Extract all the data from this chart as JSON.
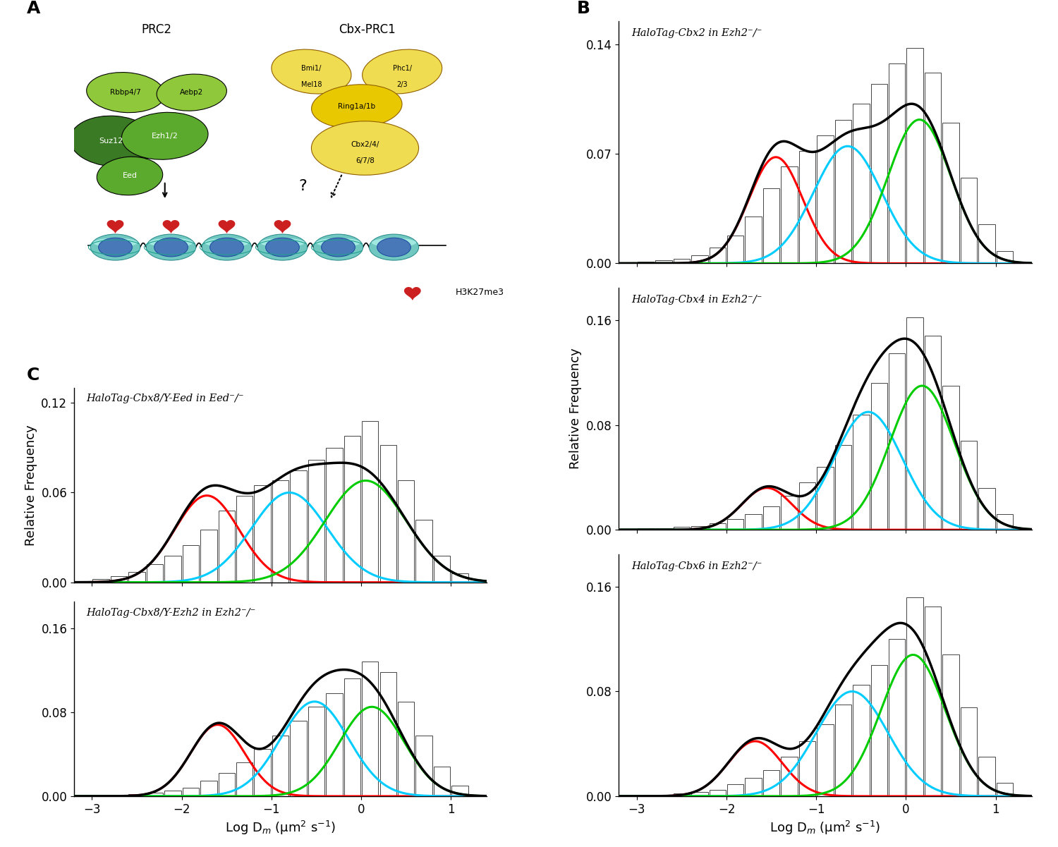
{
  "panel_B": {
    "plots": [
      {
        "title_parts": [
          [
            "HaloTag-Cbx2",
            "italic"
          ],
          [
            " in ",
            "italic"
          ],
          [
            "Ezh2",
            "italic"
          ],
          [
            "⁻/⁻",
            "italic"
          ]
        ],
        "title_plain": "HaloTag-Cbx2 in Ezh2⁻/⁻",
        "ylim": [
          0,
          0.155
        ],
        "yticks": [
          0.0,
          0.07,
          0.14
        ],
        "hist_heights": [
          0.001,
          0.002,
          0.003,
          0.005,
          0.01,
          0.018,
          0.03,
          0.048,
          0.062,
          0.072,
          0.082,
          0.092,
          0.102,
          0.115,
          0.128,
          0.138,
          0.122,
          0.09,
          0.055,
          0.025,
          0.008
        ],
        "red_gaussian": {
          "mu": -1.45,
          "sigma": 0.3,
          "amp": 0.068
        },
        "cyan_gaussian": {
          "mu": -0.65,
          "sigma": 0.38,
          "amp": 0.075
        },
        "green_gaussian": {
          "mu": 0.15,
          "sigma": 0.35,
          "amp": 0.092
        }
      },
      {
        "title_plain": "HaloTag-Cbx4 in Ezh2⁻/⁻",
        "ylim": [
          0,
          0.185
        ],
        "yticks": [
          0.0,
          0.08,
          0.16
        ],
        "hist_heights": [
          0.001,
          0.001,
          0.002,
          0.003,
          0.005,
          0.008,
          0.012,
          0.018,
          0.026,
          0.036,
          0.048,
          0.065,
          0.088,
          0.112,
          0.135,
          0.162,
          0.148,
          0.11,
          0.068,
          0.032,
          0.012
        ],
        "red_gaussian": {
          "mu": -1.55,
          "sigma": 0.28,
          "amp": 0.032
        },
        "cyan_gaussian": {
          "mu": -0.42,
          "sigma": 0.38,
          "amp": 0.09
        },
        "green_gaussian": {
          "mu": 0.18,
          "sigma": 0.36,
          "amp": 0.11
        }
      },
      {
        "title_plain": "HaloTag-Cbx6 in Ezh2⁻/⁻",
        "ylim": [
          0,
          0.185
        ],
        "yticks": [
          0.0,
          0.08,
          0.16
        ],
        "hist_heights": [
          0.001,
          0.001,
          0.002,
          0.003,
          0.005,
          0.009,
          0.014,
          0.02,
          0.03,
          0.042,
          0.055,
          0.07,
          0.085,
          0.1,
          0.12,
          0.152,
          0.145,
          0.108,
          0.068,
          0.03,
          0.01
        ],
        "red_gaussian": {
          "mu": -1.68,
          "sigma": 0.3,
          "amp": 0.042
        },
        "cyan_gaussian": {
          "mu": -0.6,
          "sigma": 0.4,
          "amp": 0.08
        },
        "green_gaussian": {
          "mu": 0.08,
          "sigma": 0.36,
          "amp": 0.108
        }
      }
    ],
    "xlabel": "Log D$_{m}$ (μm$^{2}$ s$^{-1}$)",
    "ylabel": "Relative Frequency",
    "xlim": [
      -3.2,
      1.4
    ],
    "xticks": [
      -3,
      -2,
      -1,
      0,
      1
    ]
  },
  "panel_C": {
    "plots": [
      {
        "title_plain": "HaloTag-Cbx8/Y-Eed in Eed⁻/⁻",
        "ylim": [
          0,
          0.13
        ],
        "yticks": [
          0.0,
          0.06,
          0.12
        ],
        "hist_heights": [
          0.002,
          0.004,
          0.007,
          0.012,
          0.018,
          0.025,
          0.035,
          0.048,
          0.058,
          0.065,
          0.068,
          0.075,
          0.082,
          0.09,
          0.098,
          0.108,
          0.092,
          0.068,
          0.042,
          0.018,
          0.006
        ],
        "red_gaussian": {
          "mu": -1.72,
          "sigma": 0.36,
          "amp": 0.058
        },
        "cyan_gaussian": {
          "mu": -0.8,
          "sigma": 0.42,
          "amp": 0.06
        },
        "green_gaussian": {
          "mu": 0.05,
          "sigma": 0.45,
          "amp": 0.068
        }
      },
      {
        "title_plain": "HaloTag-Cbx8/Y-Ezh2 in Ezh2⁻/⁻",
        "ylim": [
          0,
          0.185
        ],
        "yticks": [
          0.0,
          0.08,
          0.16
        ],
        "hist_heights": [
          0.001,
          0.001,
          0.002,
          0.003,
          0.005,
          0.008,
          0.015,
          0.022,
          0.032,
          0.045,
          0.058,
          0.072,
          0.085,
          0.098,
          0.112,
          0.128,
          0.118,
          0.09,
          0.058,
          0.028,
          0.01
        ],
        "red_gaussian": {
          "mu": -1.6,
          "sigma": 0.3,
          "amp": 0.068
        },
        "cyan_gaussian": {
          "mu": -0.52,
          "sigma": 0.38,
          "amp": 0.09
        },
        "green_gaussian": {
          "mu": 0.12,
          "sigma": 0.36,
          "amp": 0.085
        }
      }
    ],
    "xlabel": "Log D$_{m}$ (μm$^{2}$ s$^{-1}$)",
    "ylabel": "Relative Frequency",
    "xlim": [
      -3.2,
      1.4
    ],
    "xticks": [
      -3,
      -2,
      -1,
      0,
      1
    ]
  },
  "hist_bin_edges": [
    -3.0,
    -2.8,
    -2.6,
    -2.4,
    -2.2,
    -2.0,
    -1.8,
    -1.6,
    -1.4,
    -1.2,
    -1.0,
    -0.8,
    -0.6,
    -0.4,
    -0.2,
    0.0,
    0.2,
    0.4,
    0.6,
    0.8,
    1.0,
    1.2
  ],
  "colors": {
    "red": "#FF0000",
    "cyan": "#00CCFF",
    "green": "#00CC00",
    "black": "#000000",
    "hist_face": "#FFFFFF",
    "hist_edge": "#444444"
  },
  "illustration": {
    "dark_green": "#3A7A24",
    "mid_green": "#5BAA2E",
    "light_green": "#8FC83A",
    "dark_yellow": "#C8A800",
    "mid_yellow": "#E8C800",
    "light_yellow": "#F0DC50",
    "cyan_nuc": "#70C8C0",
    "blue_nuc": "#4878B8",
    "red_mark": "#CC2020"
  }
}
